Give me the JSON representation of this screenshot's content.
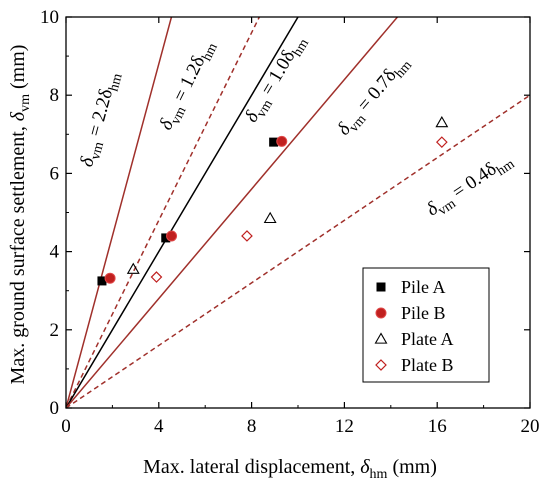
{
  "chart_data": {
    "type": "scatter",
    "xlabel": "Max. lateral displacement, δhm (mm)",
    "xlabel_main": "Max. lateral displacement, ",
    "xlabel_sym": "δ",
    "xlabel_sub": "hm",
    "xlabel_unit": " (mm)",
    "ylabel": "Max. ground surface settlement, δvm (mm)",
    "ylabel_main": "Max. ground surface settlement, ",
    "ylabel_sym": "δ",
    "ylabel_sub": "vm",
    "ylabel_unit": " (mm)",
    "xlim": [
      0,
      20
    ],
    "ylim": [
      0,
      10
    ],
    "xticks": [
      0,
      4,
      8,
      12,
      16,
      20
    ],
    "yticks": [
      0,
      2,
      4,
      6,
      8,
      10
    ],
    "xtick_labels": [
      "0",
      "4",
      "8",
      "12",
      "16",
      "20"
    ],
    "ytick_labels": [
      "0",
      "2",
      "4",
      "6",
      "8",
      "10"
    ],
    "grid": false,
    "legend_position": "bottom-right",
    "series": [
      {
        "name": "Pile A",
        "marker": "square-filled",
        "color": "#000000",
        "x": [
          1.55,
          4.3,
          8.95
        ],
        "y": [
          3.25,
          4.35,
          6.8
        ]
      },
      {
        "name": "Pile B",
        "marker": "circle-filled",
        "color": "#c0201f",
        "x": [
          1.9,
          4.55,
          9.3
        ],
        "y": [
          3.32,
          4.4,
          6.82
        ]
      },
      {
        "name": "Plate A",
        "marker": "triangle-open",
        "color": "#000000",
        "x": [
          2.9,
          8.8,
          16.2
        ],
        "y": [
          3.55,
          4.85,
          7.3
        ]
      },
      {
        "name": "Plate B",
        "marker": "diamond-open",
        "color": "#c0201f",
        "x": [
          3.9,
          7.8,
          16.2
        ],
        "y": [
          3.35,
          4.4,
          6.8
        ]
      }
    ],
    "reference_lines": [
      {
        "ratio": 2.2,
        "style": "solid",
        "color": "#a0302b",
        "label_main": "δ",
        "label_sub1": "vm",
        "label_mid": " = 2.2δ",
        "label_sub2": "hm"
      },
      {
        "ratio": 1.2,
        "style": "dashed",
        "color": "#a0302b",
        "label_main": "δ",
        "label_sub1": "vm",
        "label_mid": " = 1.2δ",
        "label_sub2": "hm"
      },
      {
        "ratio": 1.0,
        "style": "solid",
        "color": "#000000",
        "label_main": "δ",
        "label_sub1": "vm",
        "label_mid": " = 1.0δ",
        "label_sub2": "hm"
      },
      {
        "ratio": 0.7,
        "style": "solid",
        "color": "#a0302b",
        "label_main": "δ",
        "label_sub1": "vm",
        "label_mid": " = 0.7δ",
        "label_sub2": "hm"
      },
      {
        "ratio": 0.4,
        "style": "dashed",
        "color": "#a0302b",
        "label_main": "δ",
        "label_sub1": "vm",
        "label_mid": " = 0.4δ",
        "label_sub2": "hm"
      }
    ]
  }
}
